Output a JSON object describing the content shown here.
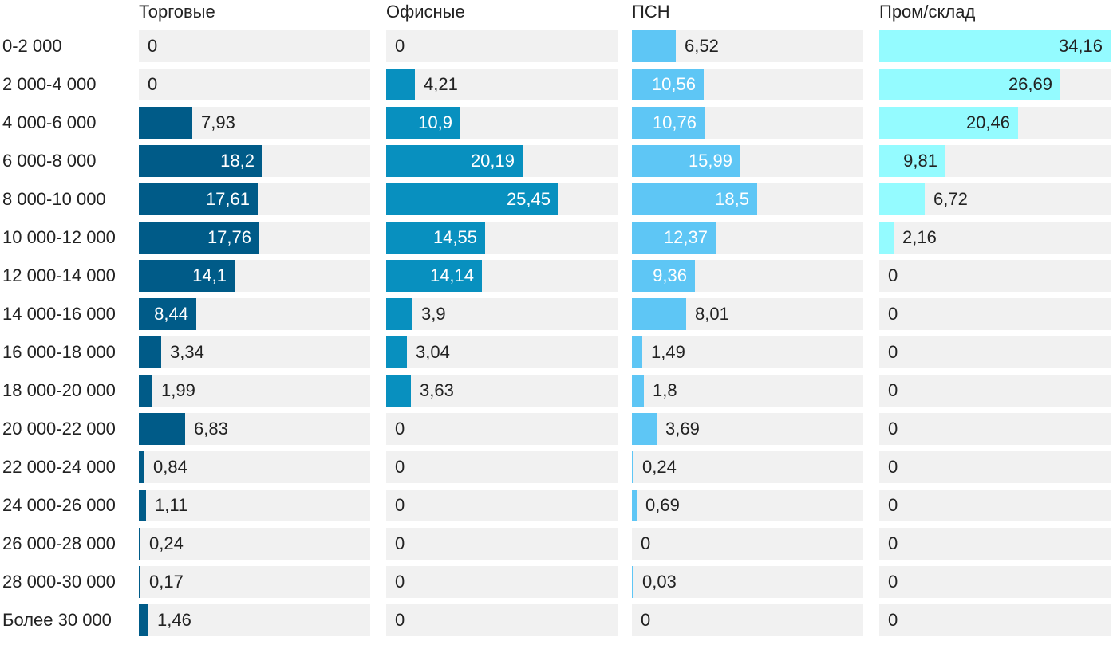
{
  "chart_data": {
    "type": "bar",
    "orientation": "horizontal",
    "layout": "small-multiples",
    "xlim": [
      0,
      34.16
    ],
    "categories": [
      "0-2 000",
      "2 000-4 000",
      "4 000-6 000",
      "6 000-8 000",
      "8 000-10 000",
      "10 000-12 000",
      "12 000-14 000",
      "14 000-16 000",
      "16 000-18 000",
      "18 000-20 000",
      "20 000-22 000",
      "22 000-24 000",
      "24 000-26 000",
      "26 000-28 000",
      "28 000-30 000",
      "Более 30 000"
    ],
    "series": [
      {
        "name": "Торговые",
        "color": "#005b88",
        "values": [
          0,
          0,
          7.93,
          18.2,
          17.61,
          17.76,
          14.1,
          8.44,
          3.34,
          1.99,
          6.83,
          0.84,
          1.11,
          0.24,
          0.17,
          1.46
        ],
        "labels": [
          "0",
          "0",
          "7,93",
          "18,2",
          "17,61",
          "17,76",
          "14,1",
          "8,44",
          "3,34",
          "1,99",
          "6,83",
          "0,84",
          "1,11",
          "0,24",
          "0,17",
          "1,46"
        ]
      },
      {
        "name": "Офисные",
        "color": "#0890bf",
        "values": [
          0,
          4.21,
          10.9,
          20.19,
          25.45,
          14.55,
          14.14,
          3.9,
          3.04,
          3.63,
          0,
          0,
          0,
          0,
          0,
          0
        ],
        "labels": [
          "0",
          "4,21",
          "10,9",
          "20,19",
          "25,45",
          "14,55",
          "14,14",
          "3,9",
          "3,04",
          "3,63",
          "0",
          "0",
          "0",
          "0",
          "0",
          "0"
        ]
      },
      {
        "name": "ПСН",
        "color": "#5ec6f5",
        "values": [
          6.52,
          10.56,
          10.76,
          15.99,
          18.5,
          12.37,
          9.36,
          8.01,
          1.49,
          1.8,
          3.69,
          0.24,
          0.69,
          0,
          0.03,
          0
        ],
        "labels": [
          "6,52",
          "10,56",
          "10,76",
          "15,99",
          "18,5",
          "12,37",
          "9,36",
          "8,01",
          "1,49",
          "1,8",
          "3,69",
          "0,24",
          "0,69",
          "0",
          "0,03",
          "0"
        ]
      },
      {
        "name": "Пром/склад",
        "color": "#94fbff",
        "values": [
          34.16,
          26.69,
          20.46,
          9.81,
          6.72,
          2.16,
          0,
          0,
          0,
          0,
          0,
          0,
          0,
          0,
          0,
          0
        ],
        "labels": [
          "34,16",
          "26,69",
          "20,46",
          "9,81",
          "6,72",
          "2,16",
          "0",
          "0",
          "0",
          "0",
          "0",
          "0",
          "0",
          "0",
          "0",
          "0"
        ],
        "label_color_inside": "#222222"
      }
    ],
    "grid": false,
    "legend": "none"
  }
}
